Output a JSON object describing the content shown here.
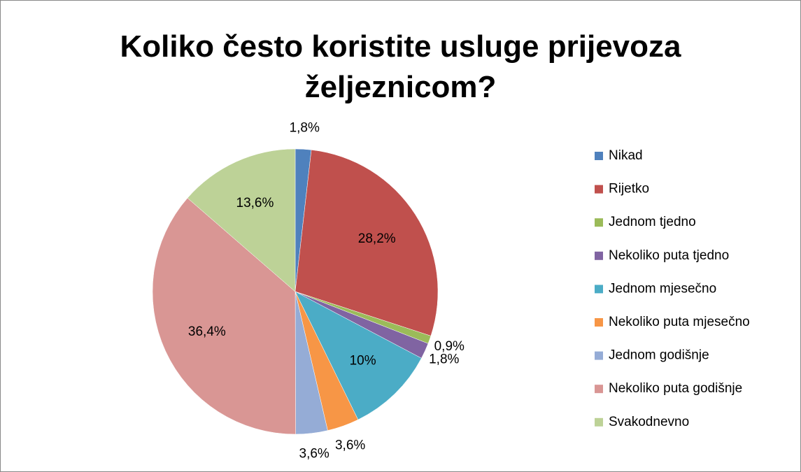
{
  "chart_data": {
    "type": "pie",
    "title": "Koliko često koristite usluge prijevoza željeznicom?",
    "categories": [
      "Nikad",
      "Rijetko",
      "Jednom tjedno",
      "Nekoliko puta tjedno",
      "Jednom mjesečno",
      "Nekoliko puta mjesečno",
      "Jednom godišnje",
      "Nekoliko puta godišnje",
      "Svakodnevno"
    ],
    "values": [
      1.8,
      28.2,
      0.9,
      1.8,
      10,
      3.6,
      3.6,
      36.4,
      13.6
    ],
    "value_labels": [
      "1,8%",
      "28,2%",
      "0,9%",
      "1,8%",
      "10%",
      "3,6%",
      "3,6%",
      "36,4%",
      "13,6%"
    ],
    "colors": [
      "#4f81bd",
      "#c0504d",
      "#9bbb59",
      "#8064a2",
      "#4bacc6",
      "#f79646",
      "#95acd6",
      "#d99694",
      "#bdd297"
    ],
    "legend": "right"
  }
}
